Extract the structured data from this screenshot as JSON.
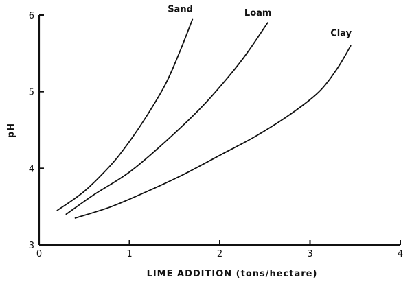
{
  "chart_data": {
    "type": "line",
    "title": "",
    "xlabel": "LIME ADDITION (tons/hectare)",
    "ylabel": "pH",
    "xlim": [
      0,
      4
    ],
    "ylim": [
      3,
      6
    ],
    "x_ticks": [
      "0",
      "1",
      "2",
      "3",
      "4"
    ],
    "y_ticks": [
      "3",
      "4",
      "5",
      "6"
    ],
    "grid": false,
    "legend": "inline labels at curve ends",
    "line_color": "#111111",
    "series": [
      {
        "name": "Sand",
        "points": [
          [
            0.2,
            3.45
          ],
          [
            0.5,
            3.7
          ],
          [
            0.8,
            4.05
          ],
          [
            1.0,
            4.35
          ],
          [
            1.2,
            4.7
          ],
          [
            1.4,
            5.1
          ],
          [
            1.55,
            5.5
          ],
          [
            1.7,
            5.95
          ]
        ]
      },
      {
        "name": "Loam",
        "points": [
          [
            0.3,
            3.4
          ],
          [
            0.6,
            3.65
          ],
          [
            1.0,
            3.95
          ],
          [
            1.4,
            4.35
          ],
          [
            1.8,
            4.8
          ],
          [
            2.1,
            5.2
          ],
          [
            2.3,
            5.5
          ],
          [
            2.53,
            5.9
          ]
        ]
      },
      {
        "name": "Clay",
        "points": [
          [
            0.4,
            3.35
          ],
          [
            0.8,
            3.5
          ],
          [
            1.2,
            3.7
          ],
          [
            1.6,
            3.92
          ],
          [
            2.0,
            4.17
          ],
          [
            2.4,
            4.42
          ],
          [
            2.8,
            4.72
          ],
          [
            3.1,
            5.0
          ],
          [
            3.3,
            5.3
          ],
          [
            3.45,
            5.6
          ]
        ]
      }
    ]
  }
}
